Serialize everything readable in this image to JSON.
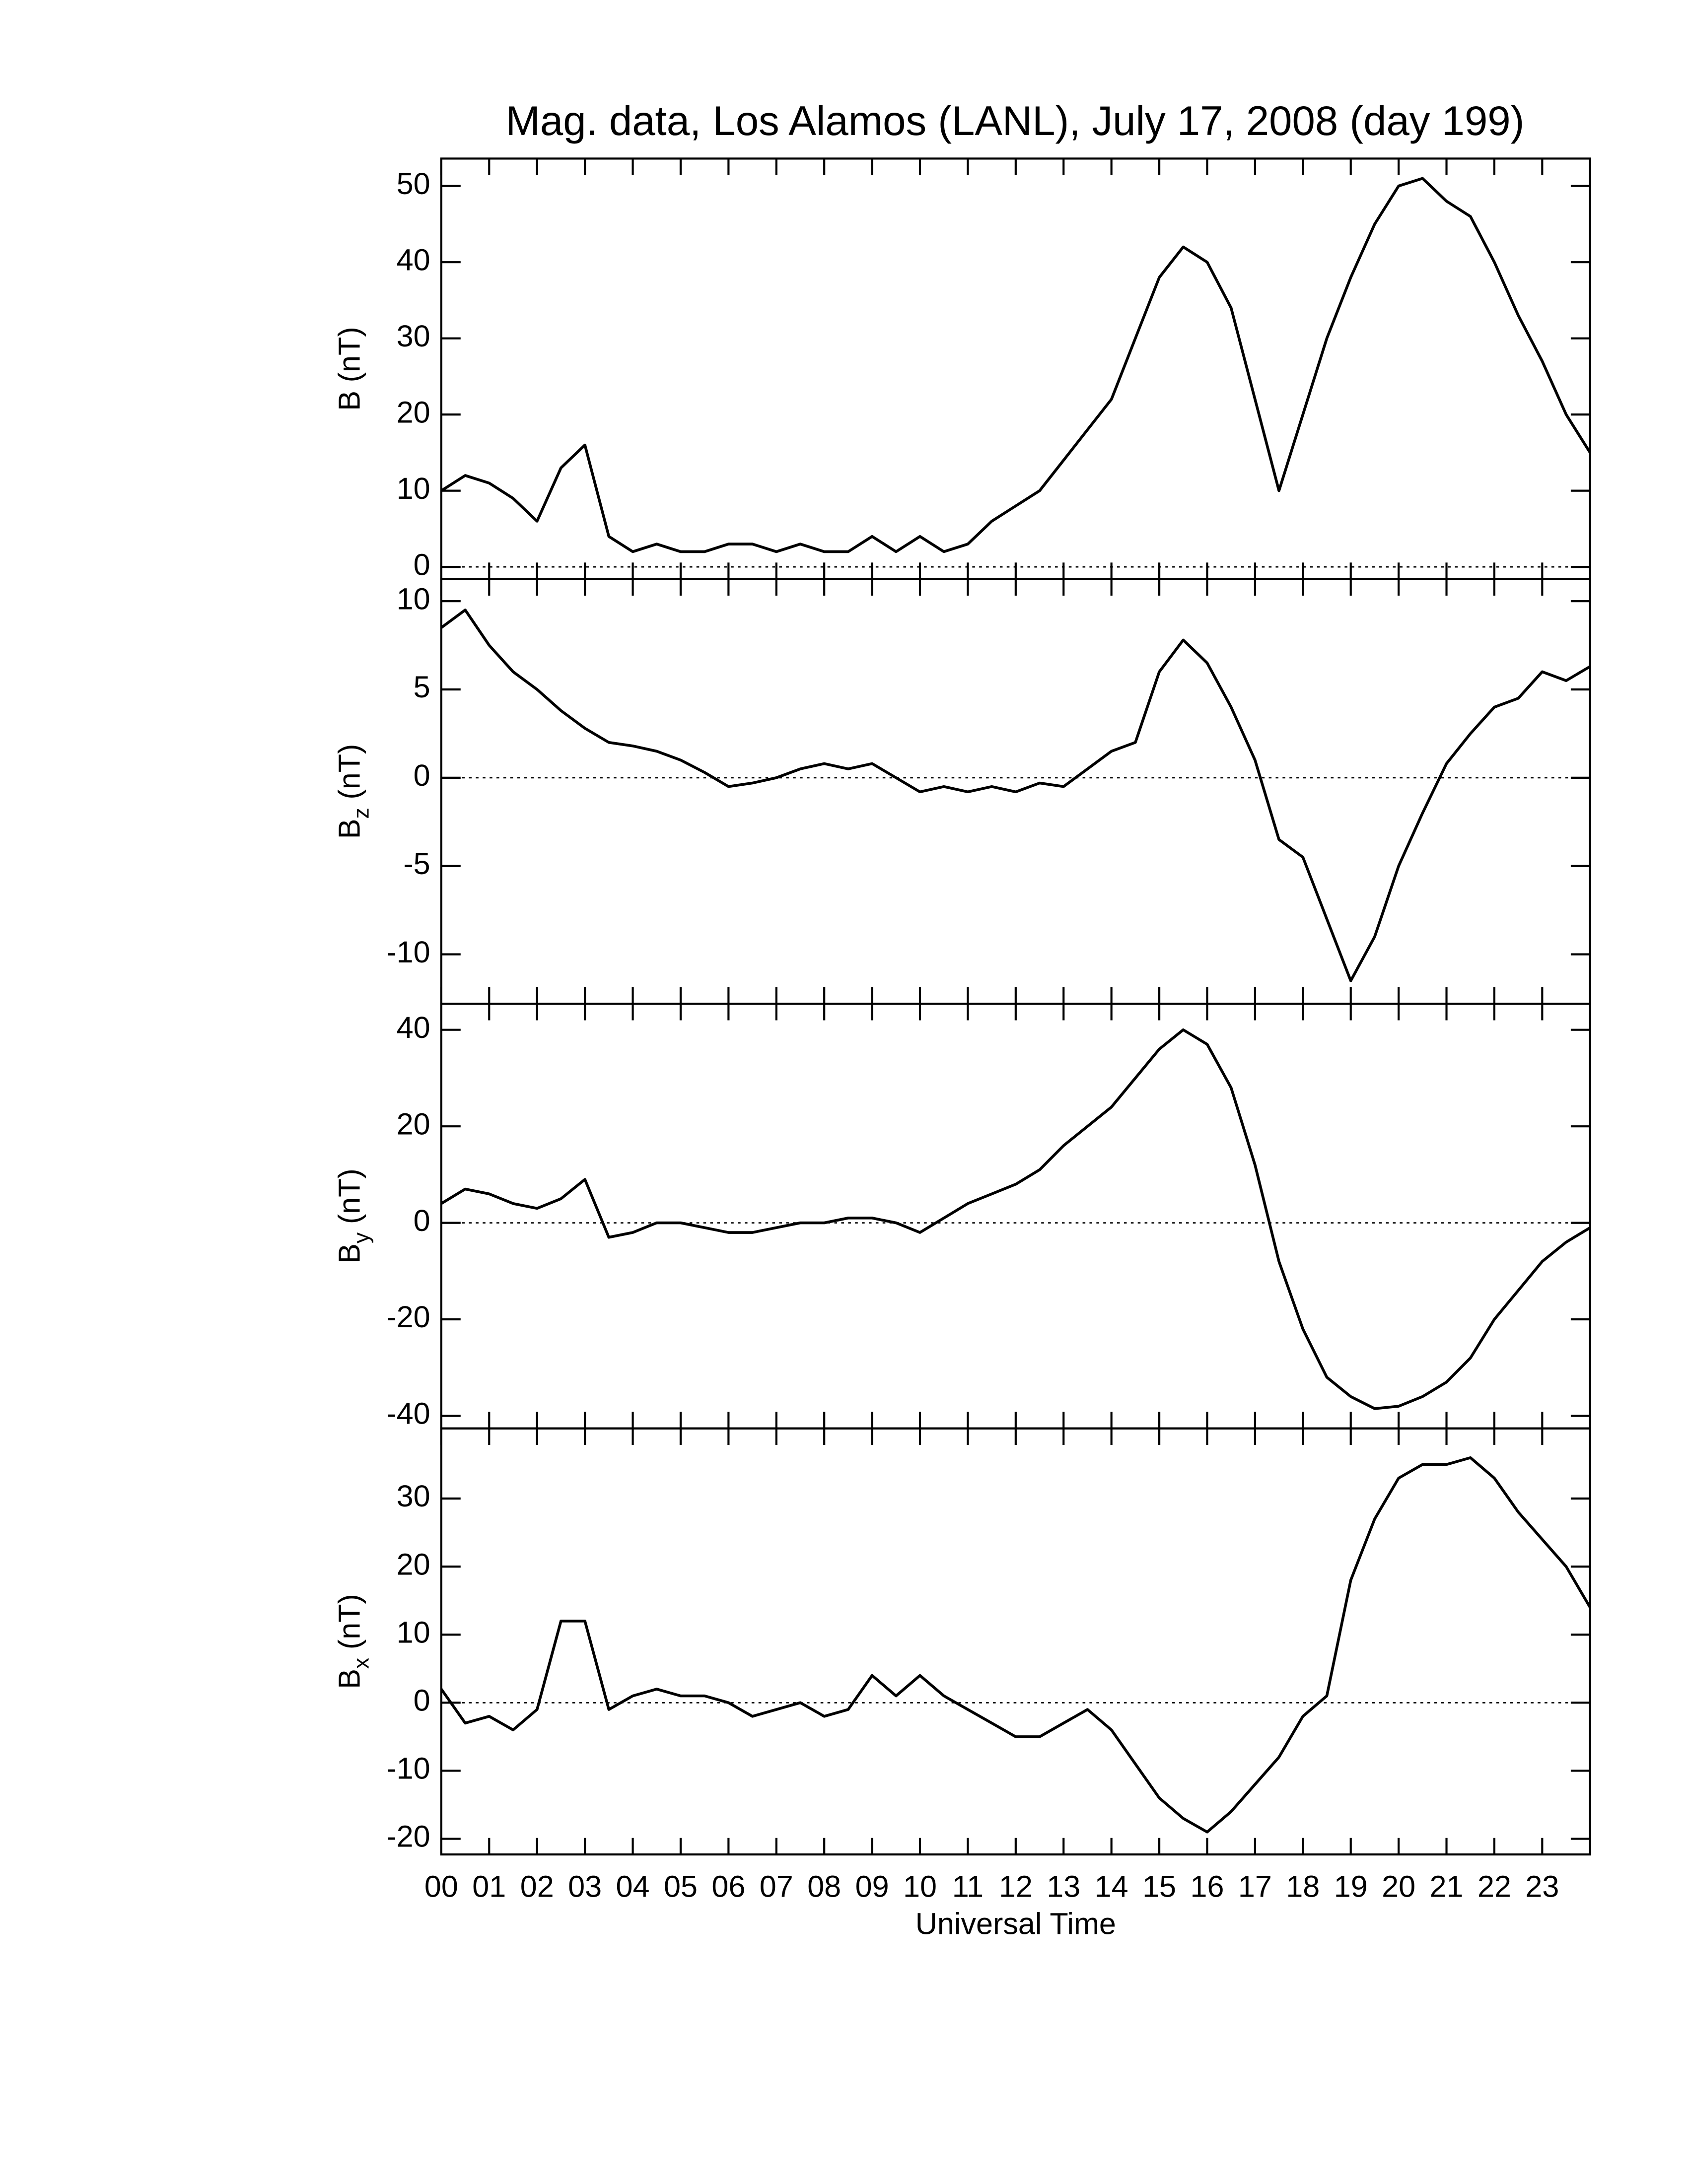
{
  "chart_data": [
    {
      "type": "line",
      "title": "Mag. data, Los Alamos (LANL), July 17, 2008 (day 199)",
      "ylabel": "B",
      "ylabel_units": "(nT)",
      "x": [
        0,
        0.5,
        1,
        1.5,
        2,
        2.5,
        3,
        3.5,
        4,
        4.5,
        5,
        5.5,
        6,
        6.5,
        7,
        7.5,
        8,
        8.5,
        9,
        9.5,
        10,
        10.5,
        11,
        11.5,
        12,
        12.5,
        13,
        13.5,
        14,
        14.5,
        15,
        15.5,
        16,
        16.5,
        17,
        17.5,
        18,
        18.5,
        19,
        19.5,
        20,
        20.5,
        21,
        21.5,
        22,
        22.5,
        23,
        23.5,
        24
      ],
      "series": [
        {
          "name": "B",
          "color": "#000000",
          "values": [
            10,
            12,
            11,
            9,
            6,
            13,
            16,
            4,
            2,
            3,
            2,
            2,
            3,
            3,
            2,
            3,
            2,
            2,
            4,
            2,
            4,
            2,
            3,
            6,
            8,
            10,
            14,
            18,
            22,
            30,
            38,
            42,
            40,
            34,
            22,
            10,
            20,
            30,
            38,
            45,
            50,
            51,
            48,
            46,
            40,
            33,
            27,
            20,
            15
          ]
        }
      ],
      "xlim": [
        0,
        24
      ],
      "ylim": [
        -1.6,
        53.6
      ],
      "yticks": [
        0,
        10,
        20,
        30,
        40,
        50
      ],
      "reference_line": 0
    },
    {
      "type": "line",
      "ylabel": "B",
      "ylabel_subscript": "z",
      "ylabel_units": "(nT)",
      "x": [
        0,
        0.5,
        1,
        1.5,
        2,
        2.5,
        3,
        3.5,
        4,
        4.5,
        5,
        5.5,
        6,
        6.5,
        7,
        7.5,
        8,
        8.5,
        9,
        9.5,
        10,
        10.5,
        11,
        11.5,
        12,
        12.5,
        13,
        13.5,
        14,
        14.5,
        15,
        15.5,
        16,
        16.5,
        17,
        17.5,
        18,
        18.5,
        19,
        19.5,
        20,
        20.5,
        21,
        21.5,
        22,
        22.5,
        23,
        23.5,
        24
      ],
      "series": [
        {
          "name": "Bz",
          "color": "#000000",
          "values": [
            8.5,
            9.5,
            7.5,
            6,
            5,
            3.8,
            2.8,
            2,
            1.8,
            1.5,
            1,
            0.3,
            -0.5,
            -0.3,
            0,
            0.5,
            0.8,
            0.5,
            0.8,
            0,
            -0.8,
            -0.5,
            -0.8,
            -0.5,
            -0.8,
            -0.3,
            -0.5,
            0.5,
            1.5,
            2,
            6,
            7.8,
            6.5,
            4,
            1,
            -3.5,
            -4.5,
            -8,
            -11.5,
            -9,
            -5,
            -2,
            0.8,
            2.5,
            4,
            4.5,
            6,
            5.5,
            6.3
          ]
        }
      ],
      "xlim": [
        0,
        24
      ],
      "ylim": [
        -12.8,
        11.25
      ],
      "yticks": [
        -10,
        -5,
        0,
        5,
        10
      ],
      "reference_line": 0
    },
    {
      "type": "line",
      "ylabel": "B",
      "ylabel_subscript": "y",
      "ylabel_units": "(nT)",
      "x": [
        0,
        0.5,
        1,
        1.5,
        2,
        2.5,
        3,
        3.5,
        4,
        4.5,
        5,
        5.5,
        6,
        6.5,
        7,
        7.5,
        8,
        8.5,
        9,
        9.5,
        10,
        10.5,
        11,
        11.5,
        12,
        12.5,
        13,
        13.5,
        14,
        14.5,
        15,
        15.5,
        16,
        16.5,
        17,
        17.5,
        18,
        18.5,
        19,
        19.5,
        20,
        20.5,
        21,
        21.5,
        22,
        22.5,
        23,
        23.5,
        24
      ],
      "series": [
        {
          "name": "By",
          "color": "#000000",
          "values": [
            4,
            7,
            6,
            4,
            3,
            5,
            9,
            -3,
            -2,
            0,
            0,
            -1,
            -2,
            -2,
            -1,
            0,
            0,
            1,
            1,
            0,
            -2,
            1,
            4,
            6,
            8,
            11,
            16,
            20,
            24,
            30,
            36,
            40,
            37,
            28,
            12,
            -8,
            -22,
            -32,
            -36,
            -38.5,
            -38,
            -36,
            -33,
            -28,
            -20,
            -14,
            -8,
            -4,
            -1
          ]
        }
      ],
      "xlim": [
        0,
        24
      ],
      "ylim": [
        -42.6,
        45.4
      ],
      "yticks": [
        -40,
        -20,
        0,
        20,
        40
      ],
      "reference_line": 0
    },
    {
      "type": "line",
      "ylabel": "B",
      "ylabel_subscript": "x",
      "ylabel_units": "(nT)",
      "xlabel": "Universal Time",
      "x": [
        0,
        0.5,
        1,
        1.5,
        2,
        2.5,
        3,
        3.5,
        4,
        4.5,
        5,
        5.5,
        6,
        6.5,
        7,
        7.5,
        8,
        8.5,
        9,
        9.5,
        10,
        10.5,
        11,
        11.5,
        12,
        12.5,
        13,
        13.5,
        14,
        14.5,
        15,
        15.5,
        16,
        16.5,
        17,
        17.5,
        18,
        18.5,
        19,
        19.5,
        20,
        20.5,
        21,
        21.5,
        22,
        22.5,
        23,
        23.5,
        24
      ],
      "series": [
        {
          "name": "Bx",
          "color": "#000000",
          "values": [
            2,
            -3,
            -2,
            -4,
            -1,
            12,
            12,
            -1,
            1,
            2,
            1,
            1,
            0,
            -2,
            -1,
            0,
            -2,
            -1,
            4,
            1,
            4,
            1,
            -1,
            -3,
            -5,
            -5,
            -3,
            -1,
            -4,
            -9,
            -14,
            -17,
            -19,
            -16,
            -12,
            -8,
            -2,
            1,
            18,
            27,
            33,
            35,
            35,
            36,
            33,
            28,
            24,
            20,
            14
          ]
        }
      ],
      "xlim": [
        0,
        24
      ],
      "ylim": [
        -22.3,
        40.3
      ],
      "yticks": [
        -20,
        -10,
        0,
        10,
        20,
        30
      ],
      "reference_line": 0,
      "xticks": [
        {
          "value": 0,
          "label": "00"
        },
        {
          "value": 1,
          "label": "01"
        },
        {
          "value": 2,
          "label": "02"
        },
        {
          "value": 3,
          "label": "03"
        },
        {
          "value": 4,
          "label": "04"
        },
        {
          "value": 5,
          "label": "05"
        },
        {
          "value": 6,
          "label": "06"
        },
        {
          "value": 7,
          "label": "07"
        },
        {
          "value": 8,
          "label": "08"
        },
        {
          "value": 9,
          "label": "09"
        },
        10,
        11,
        12,
        13,
        14,
        15,
        16,
        17,
        18,
        19,
        20,
        21,
        22,
        23
      ]
    }
  ]
}
